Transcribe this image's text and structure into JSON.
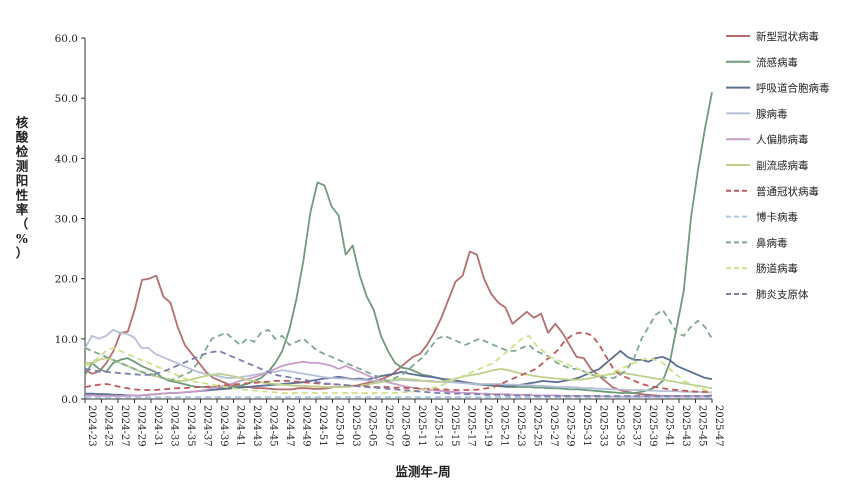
{
  "chart_data": {
    "type": "line",
    "xlabel": "监测年-周",
    "ylabel": "核酸检测阳性率（%）",
    "ylim": [
      0,
      60
    ],
    "yticks": [
      "0.0",
      "10.0",
      "20.0",
      "30.0",
      "40.0",
      "50.0",
      "60.0"
    ],
    "grid": false,
    "legend_position": "right",
    "x_tick_labels": [
      "2024-23",
      "2024-25",
      "2024-27",
      "2024-29",
      "2024-31",
      "2024-33",
      "2024-35",
      "2024-37",
      "2024-39",
      "2024-41",
      "2024-43",
      "2024-45",
      "2024-47",
      "2024-49",
      "2024-51",
      "2025-01",
      "2025-03",
      "2025-05",
      "2025-07",
      "2025-09",
      "2025-11",
      "2025-13",
      "2025-15",
      "2025-17",
      "2025-19",
      "2025-21",
      "2025-23",
      "2025-25",
      "2025-27",
      "2025-29",
      "2025-31",
      "2025-33",
      "2025-35",
      "2025-37",
      "2025-39",
      "2025-41",
      "2025-43",
      "2025-45",
      "2025-47"
    ],
    "series": [
      {
        "name": "新型冠状病毒",
        "color": "#b56d6e",
        "dash": false,
        "values": [
          4.8,
          4.2,
          4.6,
          6,
          8,
          11,
          11.2,
          15,
          19.8,
          20,
          20.5,
          17,
          16,
          12,
          9,
          7.5,
          6,
          4.5,
          3.5,
          3,
          2.5,
          2.2,
          2,
          2,
          1.8,
          1.8,
          1.7,
          1.6,
          1.6,
          1.6,
          1.8,
          1.8,
          1.7,
          1.7,
          1.8,
          2,
          2,
          2.2,
          2.2,
          2.5,
          2.8,
          3,
          3.5,
          4,
          5,
          6,
          7,
          7.5,
          9,
          11,
          13.5,
          16.5,
          19.5,
          20.5,
          24.5,
          24,
          20,
          17.5,
          16,
          15.2,
          12.5,
          13.5,
          14.5,
          13.5,
          14.2,
          11,
          12.5,
          11,
          9,
          7,
          6.8,
          5,
          4,
          3,
          2,
          1.5,
          1.2,
          1,
          0.8,
          0.7,
          0.6,
          0.5,
          0.5,
          0.5,
          0.5,
          0.5,
          0.4,
          0.5,
          0.6
        ]
      },
      {
        "name": "流感病毒",
        "color": "#6f9a7c",
        "dash": false,
        "values": [
          4,
          6,
          5,
          4.5,
          6,
          6.5,
          6.8,
          6.2,
          5.5,
          5,
          4.5,
          3.5,
          3,
          2.8,
          2.5,
          2.2,
          2,
          2,
          2,
          1.8,
          2,
          2,
          2.2,
          2.5,
          3,
          3.5,
          4.5,
          6,
          8,
          11.5,
          16.5,
          23,
          31,
          36,
          35.5,
          32,
          30.5,
          24,
          25.5,
          20.5,
          17,
          14.8,
          10.5,
          8,
          6,
          5.2,
          5,
          4.5,
          4,
          3.8,
          3.5,
          3.2,
          3,
          2.8,
          2.7,
          2.5,
          2.4,
          2.3,
          2.2,
          2.1,
          2,
          2,
          2,
          2,
          1.9,
          1.9,
          1.8,
          1.8,
          1.7,
          1.6,
          1.6,
          1.5,
          1.4,
          1.3,
          1.2,
          1.1,
          1,
          1,
          1,
          1.2,
          1.5,
          2,
          3,
          6,
          12,
          18,
          30,
          38,
          45,
          51
        ]
      },
      {
        "name": "呼吸道合胞病毒",
        "color": "#5a6f92",
        "dash": false,
        "values": [
          0.9,
          0.9,
          0.8,
          0.8,
          0.7,
          0.7,
          0.6,
          0.6,
          0.6,
          0.7,
          0.8,
          0.9,
          1,
          1,
          1.1,
          1.2,
          1.3,
          1.4,
          1.5,
          1.6,
          1.7,
          1.8,
          1.9,
          2,
          2.1,
          2.2,
          2.3,
          2.4,
          2.5,
          2.6,
          2.7,
          2.8,
          3,
          3.2,
          3.4,
          3.5,
          3.7,
          3.5,
          3.3,
          3.4,
          3.2,
          3.5,
          3.8,
          4,
          4.2,
          4.5,
          4.2,
          4,
          3.8,
          3.7,
          3.5,
          3.3,
          3.2,
          3,
          2.8,
          2.6,
          2.5,
          2.4,
          2.3,
          2.2,
          2.1,
          2.2,
          2.4,
          2.6,
          2.8,
          3,
          2.9,
          2.8,
          3,
          3.2,
          3.5,
          4,
          4.5,
          5,
          6,
          7,
          8,
          7,
          6.5,
          6.5,
          6.2,
          6.8,
          7,
          6.5,
          5.5,
          5,
          4.5,
          4,
          3.5,
          3.3
        ]
      },
      {
        "name": "腺病毒",
        "color": "#b7bfd8",
        "dash": false,
        "values": [
          8.5,
          10.5,
          10,
          10.5,
          11.5,
          11,
          10.8,
          10.2,
          8.5,
          8.5,
          7.5,
          7,
          6.5,
          6,
          5.5,
          5,
          4.5,
          4.2,
          4,
          3.8,
          3.5,
          3.5,
          3.6,
          3.8,
          4,
          4.2,
          4.5,
          4.5,
          4.8,
          4.6,
          4.4,
          4.2,
          4,
          3.8,
          3.6,
          3.5,
          3.4,
          3.4,
          3.2,
          3.2,
          3.1,
          3,
          3,
          3,
          3.1,
          3.2,
          3.1,
          3,
          3,
          3,
          2.9,
          2.8,
          2.8,
          2.7,
          2.6,
          2.5,
          2.5,
          2.5,
          2.5,
          2.5,
          2.4,
          2.4,
          2.3,
          2.3,
          2.2,
          2.2,
          2.1,
          2,
          2,
          2,
          1.9,
          1.8,
          1.8,
          1.7,
          1.7,
          1.6,
          1.6,
          1.5,
          1.5,
          1.5,
          1.4,
          1.4,
          1.3,
          1.3,
          1.3,
          1.2,
          1.2,
          1.2,
          1.1,
          1.1
        ]
      },
      {
        "name": "人偏肺病毒",
        "color": "#c99dc8",
        "dash": false,
        "values": [
          0.6,
          0.6,
          0.5,
          0.5,
          0.5,
          0.5,
          0.5,
          0.6,
          0.6,
          0.7,
          0.8,
          0.9,
          1,
          1,
          1.1,
          1.2,
          1.3,
          1.5,
          1.8,
          2,
          2.3,
          2.6,
          3,
          3.3,
          3.6,
          4,
          4.5,
          5,
          5.5,
          5.8,
          6,
          6.2,
          6,
          6,
          5.8,
          5.5,
          5,
          5.5,
          5,
          4.5,
          4,
          3.5,
          3,
          2.8,
          2.5,
          2.2,
          2,
          1.8,
          1.6,
          1.5,
          1.4,
          1.3,
          1.2,
          1.1,
          1,
          1,
          0.9,
          0.9,
          0.8,
          0.8,
          0.8,
          0.7,
          0.7,
          0.7,
          0.6,
          0.6,
          0.6,
          0.6,
          0.5,
          0.5,
          0.5,
          0.5,
          0.5,
          0.5,
          0.4,
          0.4,
          0.4,
          0.4,
          0.4,
          0.4,
          0.4,
          0.4,
          0.4,
          0.4,
          0.4,
          0.4,
          0.4,
          0.4,
          0.4,
          0.4
        ]
      },
      {
        "name": "副流感病毒",
        "color": "#bdd18b",
        "dash": false,
        "values": [
          6,
          6,
          6.5,
          6.8,
          6.5,
          6,
          5.5,
          5,
          4.5,
          4,
          3.8,
          3.5,
          3.3,
          3,
          3,
          3.2,
          3.5,
          3.8,
          4,
          4.2,
          4,
          3.8,
          3.5,
          3.2,
          3,
          2.8,
          2.6,
          2.5,
          2.4,
          2.3,
          2.2,
          2.2,
          2.1,
          2.1,
          2,
          2,
          2,
          2,
          2.1,
          2.2,
          2.4,
          2.6,
          2.8,
          3,
          3.2,
          3.4,
          3.3,
          3.2,
          3,
          2.9,
          2.8,
          3,
          3.2,
          3.5,
          3.8,
          4,
          4.2,
          4.5,
          4.8,
          5,
          4.8,
          4.5,
          4.2,
          4,
          3.8,
          3.6,
          3.5,
          3.4,
          3.3,
          3.2,
          3.2,
          3.3,
          3.5,
          3.8,
          4,
          4.2,
          4.5,
          4.2,
          4,
          3.8,
          3.6,
          3.4,
          3.2,
          3,
          2.8,
          2.6,
          2.4,
          2.2,
          2,
          1.8
        ]
      },
      {
        "name": "普通冠状病毒",
        "color": "#c05a5a",
        "dash": true,
        "values": [
          2,
          2.2,
          2.4,
          2.5,
          2.3,
          2,
          1.8,
          1.6,
          1.5,
          1.5,
          1.5,
          1.6,
          1.7,
          1.8,
          1.8,
          1.9,
          2,
          2,
          2.1,
          2.2,
          2.3,
          2.4,
          2.5,
          2.6,
          2.7,
          2.8,
          2.9,
          3,
          3,
          3,
          2.9,
          2.8,
          2.7,
          2.6,
          2.5,
          2.5,
          2.4,
          2.3,
          2.2,
          2.2,
          2.1,
          2,
          2,
          2,
          1.9,
          1.9,
          1.8,
          1.8,
          1.7,
          1.7,
          1.6,
          1.6,
          1.5,
          1.5,
          1.5,
          1.5,
          1.6,
          1.8,
          2,
          2.5,
          3,
          3.5,
          4,
          4.5,
          5,
          6,
          7,
          8,
          9.5,
          10.5,
          11,
          11,
          10.5,
          9,
          7,
          5,
          4,
          3.5,
          3,
          2.5,
          2.2,
          2,
          1.8,
          1.6,
          1.5,
          1.4,
          1.3,
          1.2,
          1.2,
          1.1
        ]
      },
      {
        "name": "博卡病毒",
        "color": "#a9c7e6",
        "dash": true,
        "values": [
          0.3,
          0.3,
          0.3,
          0.3,
          0.3,
          0.3,
          0.3,
          0.3,
          0.3,
          0.3,
          0.3,
          0.3,
          0.3,
          0.3,
          0.3,
          0.3,
          0.3,
          0.3,
          0.3,
          0.3,
          0.3,
          0.3,
          0.3,
          0.3,
          0.3,
          0.3,
          0.3,
          0.3,
          0.3,
          0.3,
          0.3,
          0.3,
          0.3,
          0.3,
          0.3,
          0.3,
          0.3,
          0.3,
          0.3,
          0.3,
          0.3,
          0.3,
          0.3,
          0.3,
          0.3,
          0.3,
          0.3,
          0.3,
          0.3,
          0.3,
          0.3,
          0.3,
          0.3,
          0.3,
          0.3,
          0.3,
          0.3,
          0.3,
          0.3,
          0.3,
          0.3,
          0.3,
          0.3,
          0.3,
          0.3,
          0.3,
          0.3,
          0.3,
          0.3,
          0.3,
          0.3,
          0.3,
          0.3,
          0.3,
          0.3,
          0.3,
          0.3,
          0.3,
          0.3,
          0.3,
          0.3,
          0.3,
          0.3,
          0.3,
          0.3,
          0.3,
          0.3,
          0.3,
          0.3,
          0.3
        ]
      },
      {
        "name": "鼻病毒",
        "color": "#7fa88f",
        "dash": true,
        "values": [
          8.5,
          8,
          7.5,
          7,
          6.5,
          6,
          5.5,
          5,
          4.5,
          4.2,
          4,
          3.5,
          3,
          3.5,
          4,
          4.5,
          6,
          8,
          10,
          10.5,
          11,
          10,
          9,
          10,
          9.5,
          11,
          11.5,
          10,
          10.5,
          9,
          9.5,
          10,
          9,
          8,
          7.5,
          7,
          6.5,
          6,
          5.5,
          5,
          4.5,
          4,
          3.5,
          3,
          3.5,
          4,
          5,
          6,
          7,
          8.5,
          10,
          10.5,
          10,
          9.5,
          9,
          9.5,
          10,
          9.5,
          9,
          8.5,
          8,
          8,
          8.5,
          9,
          8,
          7.5,
          7,
          6,
          5.5,
          5,
          5,
          4.5,
          4,
          3.8,
          3.5,
          3.5,
          4,
          5,
          7,
          10,
          12,
          14,
          14.8,
          13,
          11,
          10.5,
          12,
          13,
          12,
          10
        ]
      },
      {
        "name": "肠道病毒",
        "color": "#cfe08a",
        "dash": true,
        "values": [
          5.5,
          6,
          7,
          8,
          8.5,
          8,
          7.5,
          7,
          6.5,
          6,
          5.5,
          5,
          4.5,
          4,
          3.5,
          3,
          2.8,
          2.6,
          2.4,
          2.2,
          2,
          1.8,
          1.6,
          1.5,
          1.4,
          1.3,
          1.2,
          1.1,
          1,
          1,
          1,
          1,
          1,
          1,
          1,
          1,
          1,
          1,
          1,
          1,
          1,
          1,
          1,
          1,
          1,
          1.1,
          1.2,
          1.3,
          1.5,
          1.8,
          2,
          2.5,
          3,
          3.5,
          4,
          4.5,
          5,
          5.5,
          6,
          7,
          8,
          9,
          10,
          10.5,
          9,
          8,
          7,
          6.5,
          6,
          5.5,
          5,
          4.5,
          4,
          4,
          4,
          4.5,
          5,
          5.5,
          6,
          6.5,
          6.8,
          6.5,
          6,
          5,
          4,
          3,
          2.5,
          2,
          1.5,
          1.2
        ]
      },
      {
        "name": "肺炎支原体",
        "color": "#7b7fb0",
        "dash": true,
        "values": [
          5,
          4.8,
          4.6,
          4.5,
          4.4,
          4.3,
          4.2,
          4.1,
          4,
          4,
          4.2,
          4.5,
          5,
          5.5,
          6,
          6.5,
          7,
          7.5,
          7.8,
          8,
          7.5,
          7,
          6.5,
          6,
          5.5,
          5,
          4.5,
          4,
          3.8,
          3.6,
          3.4,
          3.2,
          3,
          2.8,
          2.6,
          2.5,
          2.4,
          2.3,
          2.2,
          2.1,
          2,
          1.9,
          1.8,
          1.7,
          1.6,
          1.5,
          1.4,
          1.3,
          1.2,
          1.1,
          1,
          1,
          0.9,
          0.9,
          0.8,
          0.8,
          0.8,
          0.7,
          0.7,
          0.7,
          0.6,
          0.6,
          0.6,
          0.6,
          0.5,
          0.5,
          0.5,
          0.5,
          0.5,
          0.5,
          0.5,
          0.5,
          0.5,
          0.5,
          0.5,
          0.5,
          0.5,
          0.5,
          0.5,
          0.5,
          0.5,
          0.5,
          0.5,
          0.5,
          0.5,
          0.5,
          0.5,
          0.5,
          0.5,
          0.5
        ]
      }
    ]
  }
}
